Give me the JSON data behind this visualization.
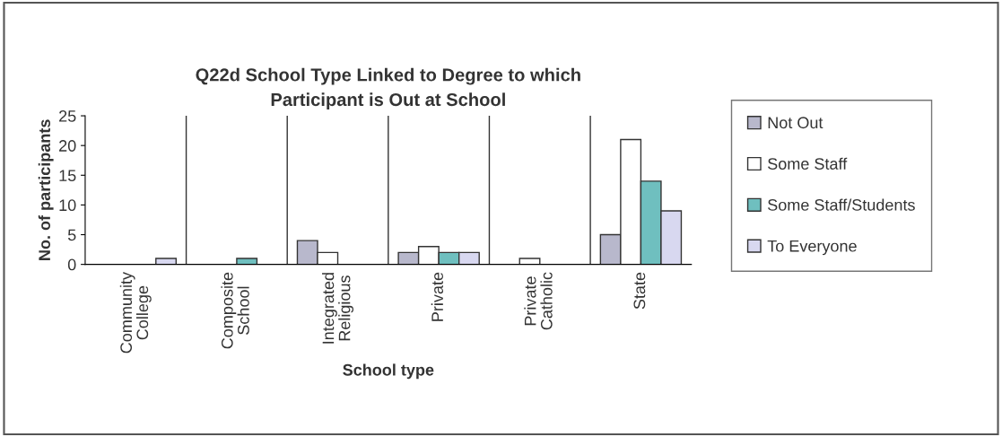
{
  "chart_data": {
    "type": "bar",
    "title": "Q22d School Type Linked to Degree to which Participant is Out at School",
    "xlabel": "School type",
    "ylabel": "No. of participants",
    "categories": [
      "Community College",
      "Composite School",
      "Integrated Religious",
      "Private",
      "Private Catholic",
      "State"
    ],
    "series": [
      {
        "name": "Not Out",
        "color": "#b8b8cc",
        "values": [
          0,
          0,
          4,
          2,
          0,
          5
        ]
      },
      {
        "name": "Some Staff",
        "color": "#ffffff",
        "values": [
          0,
          0,
          2,
          3,
          1,
          21
        ]
      },
      {
        "name": "Some Staff/Students",
        "color": "#6fbfbf",
        "values": [
          0,
          1,
          0,
          2,
          0,
          14
        ]
      },
      {
        "name": "To Everyone",
        "color": "#d8d8f0",
        "values": [
          1,
          0,
          0,
          2,
          0,
          9
        ]
      }
    ],
    "ylim": [
      0,
      25
    ],
    "yticks": [
      0,
      5,
      10,
      15,
      20,
      25
    ],
    "grid": "x",
    "legend": "right"
  }
}
